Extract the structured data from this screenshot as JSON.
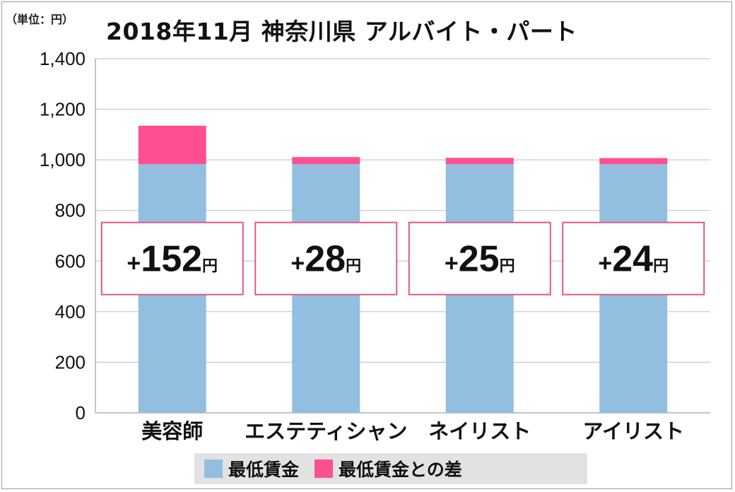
{
  "unit_note": "（単位：円）",
  "title": "2018年11月 神奈川県 アルバイト・パート",
  "colors": {
    "base": "#92bfe0",
    "diff": "#ff4f93",
    "grid": "#bdbdbd",
    "callout_border": "#e2568c"
  },
  "chart_data": {
    "type": "bar",
    "stacked": true,
    "categories": [
      "美容師",
      "エステティシャン",
      "ネイリスト",
      "アイリスト"
    ],
    "series": [
      {
        "name": "最低賃金",
        "values": [
          983,
          983,
          983,
          983
        ]
      },
      {
        "name": "最低賃金との差",
        "values": [
          152,
          28,
          25,
          24
        ]
      }
    ],
    "ylim": [
      0,
      1400
    ],
    "yticks": [
      0,
      200,
      400,
      600,
      800,
      1000,
      1200,
      1400
    ],
    "ytick_labels": [
      "0",
      "200",
      "400",
      "600",
      "800",
      "1,000",
      "1,200",
      "1,400"
    ],
    "grid": true,
    "legend_position": "bottom",
    "annotations": [
      {
        "sign": "+",
        "num": "152",
        "unit": "円"
      },
      {
        "sign": "+",
        "num": "28",
        "unit": "円"
      },
      {
        "sign": "+",
        "num": "25",
        "unit": "円"
      },
      {
        "sign": "+",
        "num": "24",
        "unit": "円"
      }
    ]
  }
}
